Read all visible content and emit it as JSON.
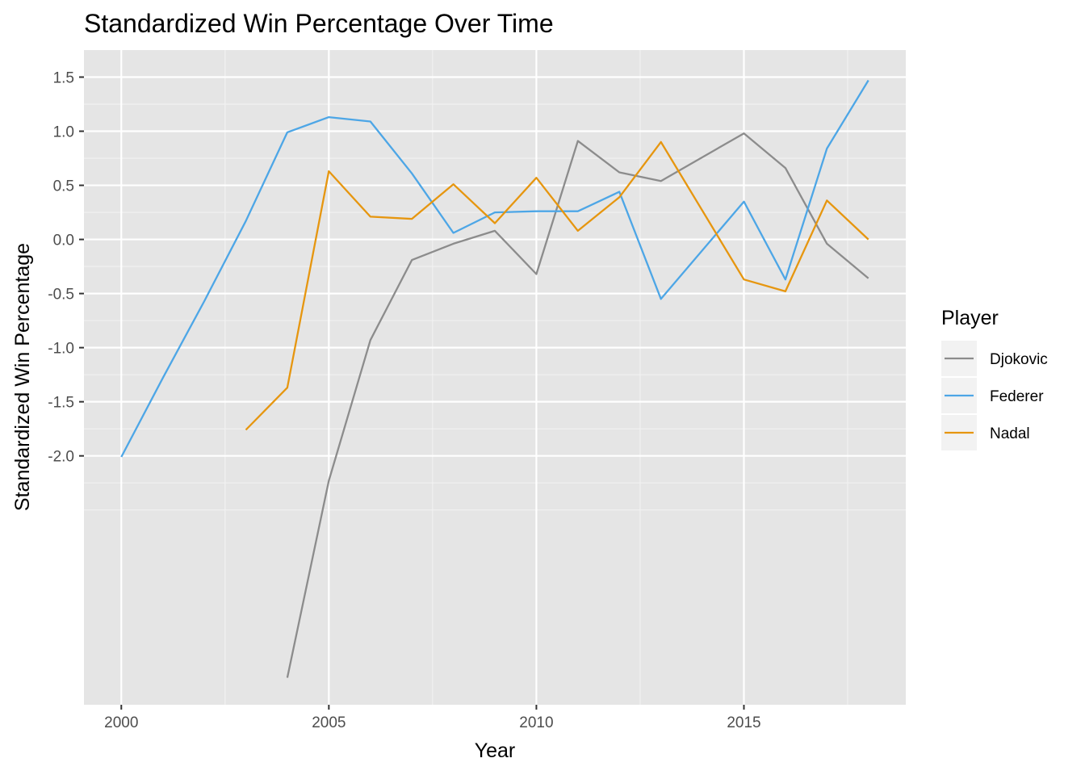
{
  "chart_data": {
    "type": "line",
    "title": "Standardized Win Percentage Over Time",
    "xlabel": "Year",
    "ylabel": "Standardized Win Percentage",
    "xlim": [
      1999.1,
      2018.9
    ],
    "ylim": [
      -4.3,
      1.75
    ],
    "x_ticks": [
      2000,
      2005,
      2010,
      2015
    ],
    "y_ticks": [
      1.5,
      1.0,
      0.5,
      0.0,
      -0.5,
      -1.0,
      -1.5,
      -2.0
    ],
    "y_tick_labels": [
      "1.5",
      "1.0",
      "0.5",
      "0.0",
      "-0.5",
      "-1.0",
      "-1.5",
      "-2.0"
    ],
    "y_minor_grid": [
      1.25,
      0.75,
      0.25,
      -0.25,
      -0.75,
      -1.25,
      -1.75,
      -2.25,
      -2.5
    ],
    "grid": true,
    "legend_title": "Player",
    "legend_position": "right",
    "series": [
      {
        "name": "Djokovic",
        "color": "#8c8c8c",
        "points": [
          [
            2004,
            -4.05
          ],
          [
            2005,
            -2.23
          ],
          [
            2006,
            -0.93
          ],
          [
            2007,
            -0.19
          ],
          [
            2008,
            -0.04
          ],
          [
            2009,
            0.08
          ],
          [
            2010,
            -0.32
          ],
          [
            2011,
            0.91
          ],
          [
            2012,
            0.62
          ],
          [
            2013,
            0.54
          ],
          [
            2015,
            0.98
          ],
          [
            2016,
            0.66
          ],
          [
            2017,
            -0.04
          ],
          [
            2018,
            -0.36
          ]
        ]
      },
      {
        "name": "Federer",
        "color": "#4da6e6",
        "points": [
          [
            2000,
            -2.01
          ],
          [
            2001,
            -1.28
          ],
          [
            2002,
            -0.57
          ],
          [
            2003,
            0.17
          ],
          [
            2004,
            0.99
          ],
          [
            2005,
            1.13
          ],
          [
            2006,
            1.09
          ],
          [
            2007,
            0.61
          ],
          [
            2008,
            0.06
          ],
          [
            2009,
            0.25
          ],
          [
            2010,
            0.26
          ],
          [
            2011,
            0.26
          ],
          [
            2012,
            0.44
          ],
          [
            2013,
            -0.55
          ],
          [
            2015,
            0.35
          ],
          [
            2016,
            -0.37
          ],
          [
            2017,
            0.84
          ],
          [
            2018,
            1.47
          ]
        ]
      },
      {
        "name": "Nadal",
        "color": "#e6960f",
        "points": [
          [
            2003,
            -1.76
          ],
          [
            2004,
            -1.37
          ],
          [
            2005,
            0.63
          ],
          [
            2006,
            0.21
          ],
          [
            2007,
            0.19
          ],
          [
            2008,
            0.51
          ],
          [
            2009,
            0.15
          ],
          [
            2010,
            0.57
          ],
          [
            2011,
            0.08
          ],
          [
            2012,
            0.39
          ],
          [
            2013,
            0.9
          ],
          [
            2015,
            -0.37
          ],
          [
            2016,
            -0.48
          ],
          [
            2017,
            0.36
          ],
          [
            2018,
            0.0
          ]
        ]
      }
    ]
  }
}
